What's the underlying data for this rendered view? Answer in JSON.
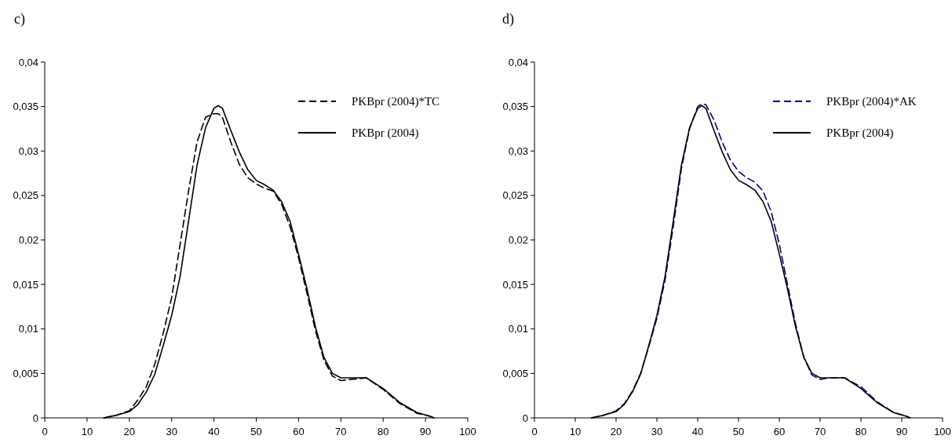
{
  "chart_data": [
    {
      "type": "line",
      "title": "c)",
      "xlim": [
        0,
        100
      ],
      "xticks": [
        0,
        10,
        20,
        30,
        40,
        50,
        60,
        70,
        80,
        90,
        100
      ],
      "ylim": [
        0,
        0.04
      ],
      "yticks": [
        {
          "value": 0,
          "label": "0"
        },
        {
          "value": 0.005,
          "label": "0,005"
        },
        {
          "value": 0.01,
          "label": "0,01"
        },
        {
          "value": 0.015,
          "label": "0,015"
        },
        {
          "value": 0.02,
          "label": "0,02"
        },
        {
          "value": 0.025,
          "label": "0,025"
        },
        {
          "value": 0.03,
          "label": "0,03"
        },
        {
          "value": 0.035,
          "label": "0,035"
        },
        {
          "value": 0.04,
          "label": "0,04"
        }
      ],
      "grid": false,
      "legend": "top right",
      "marker": "none",
      "x": [
        14,
        17,
        20,
        22,
        24,
        26,
        28,
        30,
        32,
        34,
        36,
        38,
        40,
        41,
        42,
        44,
        46,
        48,
        50,
        52,
        54,
        56,
        58,
        60,
        62,
        64,
        66,
        68,
        70,
        72,
        76,
        80,
        84,
        88,
        91,
        92
      ],
      "series": [
        {
          "name": "PKBpr (2004)*TC",
          "color": "#000000",
          "line_style": "dashed",
          "values": [
            0,
            0.0003,
            0.0008,
            0.002,
            0.0035,
            0.006,
            0.0095,
            0.0135,
            0.0195,
            0.0255,
            0.031,
            0.0338,
            0.0342,
            0.0342,
            0.0338,
            0.031,
            0.0285,
            0.027,
            0.0263,
            0.0258,
            0.0255,
            0.024,
            0.0215,
            0.018,
            0.014,
            0.0098,
            0.0065,
            0.0047,
            0.0042,
            0.0043,
            0.0045,
            0.0032,
            0.0016,
            0.0005,
            0.0002,
            0
          ]
        },
        {
          "name": "PKBpr (2004)",
          "color": "#000000",
          "line_style": "solid",
          "values": [
            0,
            0.0003,
            0.0007,
            0.0015,
            0.0029,
            0.0049,
            0.0081,
            0.0115,
            0.0159,
            0.0221,
            0.0284,
            0.0326,
            0.0348,
            0.0351,
            0.0348,
            0.0323,
            0.0299,
            0.0279,
            0.0267,
            0.0262,
            0.0256,
            0.0243,
            0.0221,
            0.0184,
            0.0145,
            0.0102,
            0.0068,
            0.005,
            0.0045,
            0.0045,
            0.0045,
            0.0033,
            0.0017,
            0.0006,
            0.0002,
            0
          ]
        }
      ]
    },
    {
      "type": "line",
      "title": "d)",
      "xlim": [
        0,
        100
      ],
      "xticks": [
        0,
        10,
        20,
        30,
        40,
        50,
        60,
        70,
        80,
        90,
        100
      ],
      "ylim": [
        0,
        0.04
      ],
      "yticks": [
        {
          "value": 0,
          "label": "0"
        },
        {
          "value": 0.005,
          "label": "0,005"
        },
        {
          "value": 0.01,
          "label": "0,01"
        },
        {
          "value": 0.015,
          "label": "0,015"
        },
        {
          "value": 0.02,
          "label": "0,02"
        },
        {
          "value": 0.025,
          "label": "0,025"
        },
        {
          "value": 0.03,
          "label": "0,03"
        },
        {
          "value": 0.035,
          "label": "0,035"
        },
        {
          "value": 0.04,
          "label": "0,04"
        }
      ],
      "grid": false,
      "legend": "top right",
      "marker": "none",
      "x": [
        14,
        17,
        20,
        22,
        24,
        26,
        28,
        30,
        32,
        34,
        36,
        38,
        40,
        41,
        42,
        44,
        46,
        48,
        50,
        52,
        54,
        56,
        58,
        60,
        62,
        64,
        66,
        68,
        70,
        72,
        76,
        80,
        84,
        88,
        91,
        92
      ],
      "series": [
        {
          "name": "PKBpr (2004)*AK",
          "color": "#000080",
          "line_style": "dashed",
          "values": [
            0,
            0.0003,
            0.0008,
            0.0016,
            0.003,
            0.005,
            0.008,
            0.0112,
            0.0155,
            0.0215,
            0.028,
            0.0325,
            0.035,
            0.0353,
            0.0352,
            0.0335,
            0.031,
            0.029,
            0.0277,
            0.027,
            0.0265,
            0.0255,
            0.0232,
            0.0195,
            0.015,
            0.0105,
            0.0068,
            0.0048,
            0.0043,
            0.0045,
            0.0045,
            0.0035,
            0.0018,
            0.0006,
            0.0002,
            0
          ]
        },
        {
          "name": "PKBpr (2004)",
          "color": "#000000",
          "line_style": "solid",
          "values": [
            0,
            0.0003,
            0.0007,
            0.0015,
            0.0029,
            0.0049,
            0.0081,
            0.0115,
            0.0159,
            0.0221,
            0.0284,
            0.0326,
            0.0348,
            0.0351,
            0.0348,
            0.0323,
            0.0299,
            0.0279,
            0.0267,
            0.0262,
            0.0256,
            0.0243,
            0.0221,
            0.0184,
            0.0145,
            0.0102,
            0.0068,
            0.005,
            0.0045,
            0.0045,
            0.0045,
            0.0033,
            0.0017,
            0.0006,
            0.0002,
            0
          ]
        }
      ]
    }
  ]
}
